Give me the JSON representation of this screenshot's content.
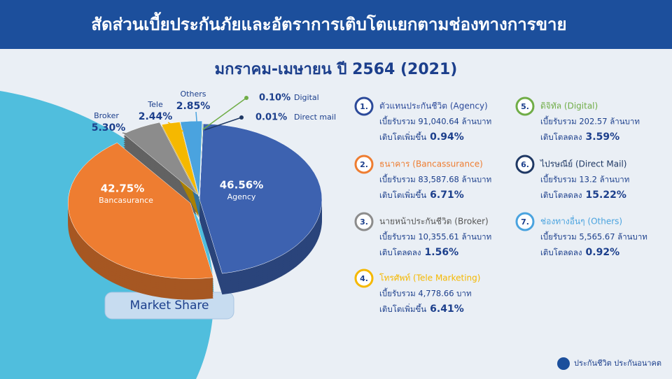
{
  "header": {
    "title": "สัดส่วนเบี้ยประกันภัยและอัตราการเติบโตแยกตามช่องทางการขาย"
  },
  "chart_data": {
    "type": "pie",
    "subtitle": "มกราคม-เมษายน ปี 2564 (2021)",
    "categories": [
      "Agency",
      "Bancasurance",
      "Broker",
      "Tele",
      "Others",
      "Digital",
      "Direct mail"
    ],
    "values": [
      46.56,
      42.75,
      5.3,
      2.44,
      2.85,
      0.1,
      0.01
    ],
    "value_labels": [
      "46.56%",
      "42.75%",
      "5.30%",
      "2.44%",
      "2.85%",
      "0.10%",
      "0.01%"
    ],
    "colors": [
      "#3d62b0",
      "#ee7d31",
      "#8c8c8c",
      "#f5b800",
      "#4aa3df",
      "#70ad47",
      "#1f3864"
    ],
    "button": "Market Share"
  },
  "channels": [
    {
      "number": "1.",
      "title": "ตัวแทนประกันชีวิต (Agency)",
      "premium": "เบี้ยรับรวม 91,040.64 ล้านบาท",
      "growth_label": "เติบโตเพิ่มขึ้น",
      "growth": "0.94%",
      "color": "#2c4a9a"
    },
    {
      "number": "2.",
      "title": "ธนาคาร (Bancassurance)",
      "premium": "เบี้ยรับรวม 83,587.68 ล้านบาท",
      "growth_label": "เติบโตเพิ่มขึ้น",
      "growth": "6.71%",
      "color": "#ee7d31"
    },
    {
      "number": "3.",
      "title": "นายหน้าประกันชีวิต (Broker)",
      "premium": "เบี้ยรับรวม 10,355.61 ล้านบาท",
      "growth_label": "เติบโตลดลง",
      "growth": "1.56%",
      "color": "#8c8c8c"
    },
    {
      "number": "4.",
      "title": "โทรศัพท์ (Tele Marketing)",
      "premium": "เบี้ยรับรวม 4,778.66 บาท",
      "growth_label": "เติบโตเพิ่มขึ้น",
      "growth": "6.41%",
      "color": "#f5b800"
    },
    {
      "number": "5.",
      "title": "ดิจิทัล (Digital)",
      "premium": "เบี้ยรับรวม 202.57 ล้านบาท",
      "growth_label": "เติบโตลดลง",
      "growth": "3.59%",
      "color": "#70ad47"
    },
    {
      "number": "6.",
      "title": "ไปรษณีย์ (Direct Mail)",
      "premium": "เบี้ยรับรวม 13.2 ล้านบาท",
      "growth_label": "เติบโตลดลง",
      "growth": "15.22%",
      "color": "#1f3864"
    },
    {
      "number": "7.",
      "title": "ช่องทางอื่นๆ (Others)",
      "premium": "เบี้ยรับรวม 5,565.67 ล้านบาท",
      "growth_label": "เติบโตลดลง",
      "growth": "0.92%",
      "color": "#4aa3df"
    }
  ],
  "footer": {
    "slogan": "ประกันชีวิต ประกันอนาคต"
  }
}
